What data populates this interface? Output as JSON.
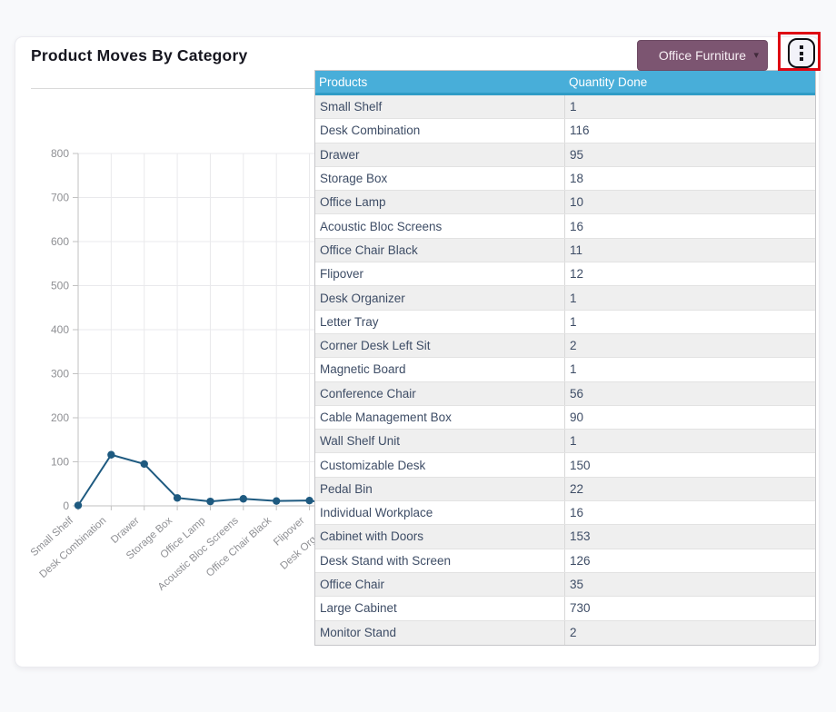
{
  "page": {
    "background": "#f8f9fb"
  },
  "header": {
    "title": "Product Moves By Category",
    "category_button": {
      "label": "Office Furniture",
      "caret": "▾",
      "color": "#7c5571"
    },
    "kebab_button": {
      "icon": "kebab-vertical-dots"
    }
  },
  "annotation": {
    "color": "#de0713"
  },
  "chart_data": {
    "type": "line",
    "title": "Product Moves By Category",
    "categories": [
      "Small Shelf",
      "Desk Combination",
      "Drawer",
      "Storage Box",
      "Office Lamp",
      "Acoustic Bloc Screens",
      "Office Chair Black",
      "Flipover",
      "Desk Organizer",
      "Letter Tray",
      "Corner Desk Left Sit",
      "Magnetic Board",
      "Conference Chair",
      "Cable Management Box",
      "Wall Shelf Unit",
      "Customizable Desk",
      "Pedal Bin",
      "Individual Workplace",
      "Cabinet with Doors",
      "Desk Stand with Screen",
      "Office Chair",
      "Large Cabinet",
      "Monitor Stand"
    ],
    "series": [
      {
        "name": "Quantity Done",
        "color": "#1e5a80",
        "values": [
          1,
          116,
          95,
          18,
          10,
          16,
          11,
          12,
          1,
          1,
          2,
          1,
          56,
          90,
          1,
          150,
          22,
          16,
          153,
          126,
          35,
          730,
          2
        ]
      }
    ],
    "xlabel": "",
    "ylabel": "",
    "ylim": [
      0,
      800
    ],
    "yticks": [
      0,
      100,
      200,
      300,
      400,
      500,
      600,
      700,
      800
    ],
    "grid": true,
    "legend": "none",
    "x_label_rotation": -42
  },
  "table": {
    "headers": [
      "Products",
      "Quantity Done"
    ],
    "header_bg": "#48aed9",
    "rows": [
      [
        "Small Shelf",
        1
      ],
      [
        "Desk Combination",
        116
      ],
      [
        "Drawer",
        95
      ],
      [
        "Storage Box",
        18
      ],
      [
        "Office Lamp",
        10
      ],
      [
        "Acoustic Bloc Screens",
        16
      ],
      [
        "Office Chair Black",
        11
      ],
      [
        "Flipover",
        12
      ],
      [
        "Desk Organizer",
        1
      ],
      [
        "Letter Tray",
        1
      ],
      [
        "Corner Desk Left Sit",
        2
      ],
      [
        "Magnetic Board",
        1
      ],
      [
        "Conference Chair",
        56
      ],
      [
        "Cable Management Box",
        90
      ],
      [
        "Wall Shelf Unit",
        1
      ],
      [
        "Customizable Desk",
        150
      ],
      [
        "Pedal Bin",
        22
      ],
      [
        "Individual Workplace",
        16
      ],
      [
        "Cabinet with Doors",
        153
      ],
      [
        "Desk Stand with Screen",
        126
      ],
      [
        "Office Chair",
        35
      ],
      [
        "Large Cabinet",
        730
      ],
      [
        "Monitor Stand",
        2
      ]
    ]
  }
}
